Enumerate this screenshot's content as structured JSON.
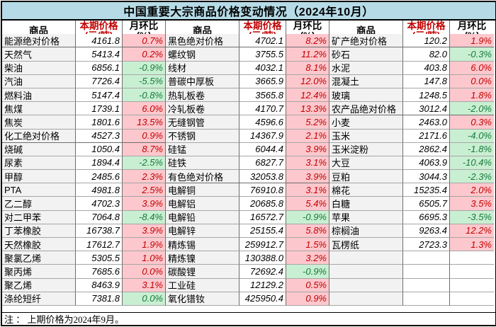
{
  "title": "中国重要大宗商品价格变动情况（2024年10月）",
  "note": "注 ： 上期价格为2024年9月。",
  "headers": {
    "commodity": "商品",
    "price_l1": "本期价格",
    "price_l2": "(元/吨)",
    "mom_l1": "月环比",
    "mom_l2": "(%)"
  },
  "colors": {
    "up_bg": "#fdc8cd",
    "up_text": "#c00000",
    "down_bg": "#c9efd2",
    "down_text": "#157a3b",
    "category_bg": "#dcebf5",
    "name_bg": "#f2f2f2",
    "title_bg": "#b6dbe7",
    "header_price_text": "#c00000"
  },
  "groups": [
    {
      "rows": [
        {
          "name": "能源绝对价格",
          "price": "4161.8",
          "mom": "0.7%",
          "trend": "up",
          "category": true
        },
        {
          "name": "天然气",
          "price": "5413.4",
          "mom": "0.2%",
          "trend": "up",
          "category": false
        },
        {
          "name": "柴油",
          "price": "6856.1",
          "mom": "-0.9%",
          "trend": "down",
          "category": false
        },
        {
          "name": "汽油",
          "price": "7726.4",
          "mom": "-5.5%",
          "trend": "down",
          "category": false
        },
        {
          "name": "燃料油",
          "price": "5147.4",
          "mom": "-0.8%",
          "trend": "down",
          "category": false
        },
        {
          "name": "焦煤",
          "price": "1739.1",
          "mom": "6.0%",
          "trend": "up",
          "category": false
        },
        {
          "name": "焦炭",
          "price": "1801.6",
          "mom": "13.5%",
          "trend": "up",
          "category": false
        },
        {
          "name": "化工绝对价格",
          "price": "4527.3",
          "mom": "0.9%",
          "trend": "up",
          "category": true
        },
        {
          "name": "烧碱",
          "price": "1050.4",
          "mom": "8.7%",
          "trend": "up",
          "category": false
        },
        {
          "name": "尿素",
          "price": "1894.4",
          "mom": "-2.5%",
          "trend": "down",
          "category": false
        },
        {
          "name": "甲醇",
          "price": "2485.6",
          "mom": "2.3%",
          "trend": "up",
          "category": false
        },
        {
          "name": "PTA",
          "price": "4981.8",
          "mom": "2.5%",
          "trend": "up",
          "category": false
        },
        {
          "name": "乙二醇",
          "price": "4702.3",
          "mom": "3.9%",
          "trend": "up",
          "category": false
        },
        {
          "name": "对二甲苯",
          "price": "7064.8",
          "mom": "-8.4%",
          "trend": "down",
          "category": false
        },
        {
          "name": "丁苯橡胶",
          "price": "16738.7",
          "mom": "3.9%",
          "trend": "up",
          "category": false
        },
        {
          "name": "天然橡胶",
          "price": "17612.7",
          "mom": "1.9%",
          "trend": "up",
          "category": false
        },
        {
          "name": "聚氯乙烯",
          "price": "5305.5",
          "mom": "1.0%",
          "trend": "up",
          "category": false
        },
        {
          "name": "聚丙烯",
          "price": "7685.6",
          "mom": "0.0%",
          "trend": "up",
          "category": false
        },
        {
          "name": "聚乙烯",
          "price": "8463.9",
          "mom": "3.1%",
          "trend": "up",
          "category": false
        },
        {
          "name": "涤纶短纤",
          "price": "7381.8",
          "mom": "0.0%",
          "trend": "down",
          "category": false
        }
      ]
    },
    {
      "rows": [
        {
          "name": "黑色绝对价格",
          "price": "4702.1",
          "mom": "8.2%",
          "trend": "up",
          "category": true
        },
        {
          "name": "螺纹钢",
          "price": "3755.5",
          "mom": "11.2%",
          "trend": "up",
          "category": false
        },
        {
          "name": "线材",
          "price": "4032.1",
          "mom": "8.1%",
          "trend": "up",
          "category": false
        },
        {
          "name": "普碳中厚板",
          "price": "3665.9",
          "mom": "12.0%",
          "trend": "up",
          "category": false
        },
        {
          "name": "热轧板卷",
          "price": "3565.8",
          "mom": "12.4%",
          "trend": "up",
          "category": false
        },
        {
          "name": "冷轧板卷",
          "price": "4170.7",
          "mom": "13.3%",
          "trend": "up",
          "category": false
        },
        {
          "name": "无缝钢管",
          "price": "4596.6",
          "mom": "5.2%",
          "trend": "up",
          "category": false
        },
        {
          "name": "不锈钢",
          "price": "14367.9",
          "mom": "2.1%",
          "trend": "up",
          "category": false
        },
        {
          "name": "硅锰",
          "price": "6044.4",
          "mom": "3.9%",
          "trend": "up",
          "category": false
        },
        {
          "name": "硅铁",
          "price": "6827.7",
          "mom": "3.1%",
          "trend": "up",
          "category": false
        },
        {
          "name": "有色绝对价格",
          "price": "32053.8",
          "mom": "3.9%",
          "trend": "up",
          "category": true
        },
        {
          "name": "电解铜",
          "price": "76910.8",
          "mom": "3.1%",
          "trend": "up",
          "category": false
        },
        {
          "name": "电解铝",
          "price": "20685.8",
          "mom": "5.4%",
          "trend": "up",
          "category": false
        },
        {
          "name": "电解铅",
          "price": "16572.7",
          "mom": "-0.9%",
          "trend": "down",
          "category": false
        },
        {
          "name": "电解锌",
          "price": "25155.4",
          "mom": "5.8%",
          "trend": "up",
          "category": false
        },
        {
          "name": "精炼锡",
          "price": "259912.7",
          "mom": "1.5%",
          "trend": "up",
          "category": false
        },
        {
          "name": "精炼镍",
          "price": "130388.0",
          "mom": "3.2%",
          "trend": "up",
          "category": false
        },
        {
          "name": "碳酸锂",
          "price": "72692.4",
          "mom": "-0.9%",
          "trend": "down",
          "category": false
        },
        {
          "name": "工业硅",
          "price": "12129.2",
          "mom": "0.5%",
          "trend": "up",
          "category": false
        },
        {
          "name": "氧化镨钕",
          "price": "425950.4",
          "mom": "0.9%",
          "trend": "up",
          "category": false
        }
      ]
    },
    {
      "rows": [
        {
          "name": "矿产绝对价格",
          "price": "120.2",
          "mom": "1.9%",
          "trend": "up",
          "category": true
        },
        {
          "name": "砂石",
          "price": "82.0",
          "mom": "-0.3%",
          "trend": "down",
          "category": false
        },
        {
          "name": "水泥",
          "price": "403.8",
          "mom": "6.0%",
          "trend": "up",
          "category": false
        },
        {
          "name": "混凝土",
          "price": "147.8",
          "mom": "0.0%",
          "trend": "up",
          "category": false
        },
        {
          "name": "玻璃",
          "price": "1248.5",
          "mom": "1.8%",
          "trend": "up",
          "category": false
        },
        {
          "name": "农产品绝对价格",
          "price": "3012.4",
          "mom": "-2.0%",
          "trend": "down",
          "category": true
        },
        {
          "name": "小麦",
          "price": "2463.0",
          "mom": "0.3%",
          "trend": "up",
          "category": false
        },
        {
          "name": "玉米",
          "price": "2171.6",
          "mom": "-4.0%",
          "trend": "down",
          "category": false
        },
        {
          "name": "玉米淀粉",
          "price": "2862.4",
          "mom": "-1.8%",
          "trend": "down",
          "category": false
        },
        {
          "name": "大豆",
          "price": "4063.9",
          "mom": "-10.4%",
          "trend": "down",
          "category": false
        },
        {
          "name": "豆粕",
          "price": "3044.3",
          "mom": "-2.3%",
          "trend": "down",
          "category": false
        },
        {
          "name": "棉花",
          "price": "15235.4",
          "mom": "2.0%",
          "trend": "up",
          "category": false
        },
        {
          "name": "白糖",
          "price": "6505.7",
          "mom": "3.5%",
          "trend": "up",
          "category": false
        },
        {
          "name": "苹果",
          "price": "6695.3",
          "mom": "-3.5%",
          "trend": "down",
          "category": false
        },
        {
          "name": "棕榈油",
          "price": "9263.4",
          "mom": "12.2%",
          "trend": "up",
          "category": false
        },
        {
          "name": "瓦楞纸",
          "price": "2723.3",
          "mom": "1.3%",
          "trend": "up",
          "category": false
        },
        {
          "name": "",
          "price": "",
          "mom": "",
          "trend": null,
          "category": false
        },
        {
          "name": "",
          "price": "",
          "mom": "",
          "trend": null,
          "category": false
        },
        {
          "name": "",
          "price": "",
          "mom": "",
          "trend": null,
          "category": false
        },
        {
          "name": "",
          "price": "",
          "mom": "",
          "trend": null,
          "category": false
        }
      ]
    }
  ]
}
